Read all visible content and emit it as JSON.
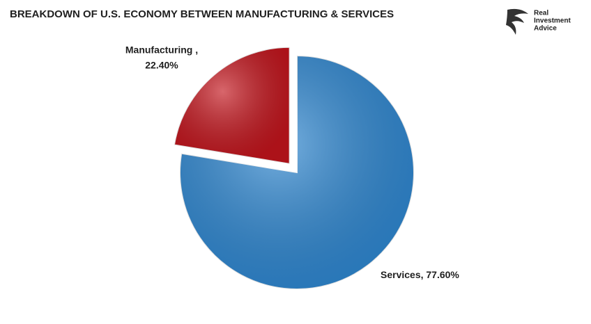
{
  "chart_data": {
    "type": "pie",
    "title": "BREAKDOWN OF U.S. ECONOMY BETWEEN MANUFACTURING & SERVICES",
    "categories": [
      "Manufacturing ,",
      "Services,"
    ],
    "values": [
      22.4,
      77.6
    ],
    "value_labels": [
      "22.40%",
      "77.60%"
    ],
    "colors": [
      "#c3141c",
      "#2f88d2"
    ]
  },
  "logo": {
    "lines": [
      "Real",
      "Investment",
      "Advice"
    ]
  }
}
